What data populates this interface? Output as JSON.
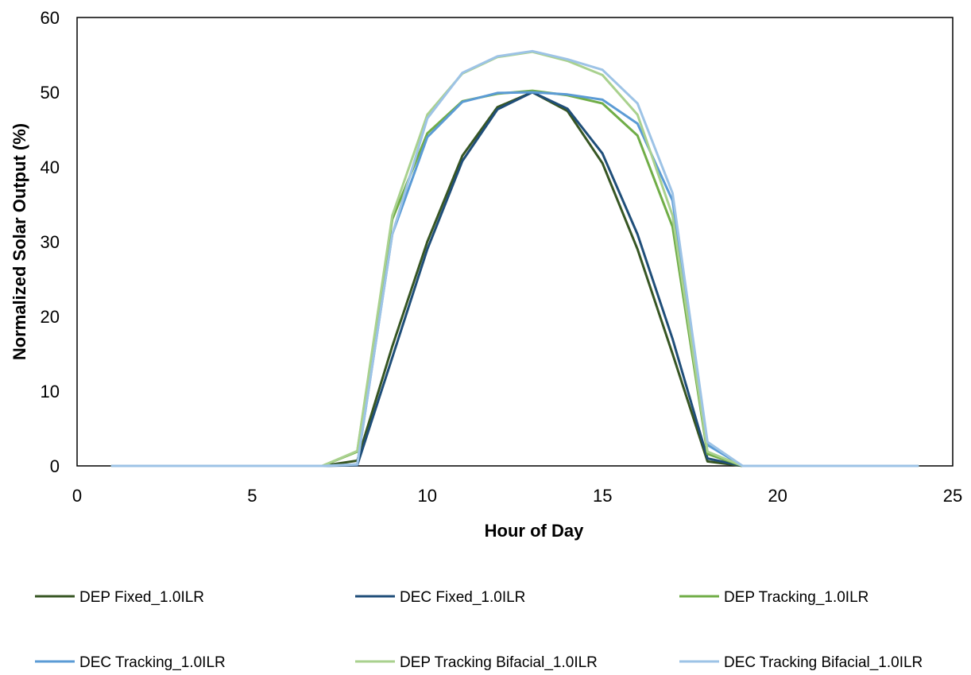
{
  "chart_data": {
    "type": "line",
    "title": "",
    "xlabel": "Hour of Day",
    "ylabel": "Normalized Solar Output (%)",
    "xlim": [
      0,
      25
    ],
    "ylim": [
      0,
      60
    ],
    "xticks": [
      0,
      5,
      10,
      15,
      20,
      25
    ],
    "yticks": [
      0,
      10,
      20,
      30,
      40,
      50,
      60
    ],
    "grid": false,
    "legend_position": "bottom",
    "x": [
      1,
      2,
      3,
      4,
      5,
      6,
      7,
      8,
      9,
      10,
      11,
      12,
      13,
      14,
      15,
      16,
      17,
      18,
      19,
      20,
      21,
      22,
      23,
      24
    ],
    "series": [
      {
        "name": "DEP Fixed_1.0ILR",
        "color": "#375623",
        "values": [
          0,
          0,
          0,
          0,
          0,
          0,
          0,
          0.7,
          16,
          30,
          41.5,
          48,
          50,
          47.5,
          40.5,
          29,
          15,
          0.6,
          0,
          0,
          0,
          0,
          0,
          0
        ]
      },
      {
        "name": "DEC Fixed_1.0ILR",
        "color": "#1f4e79",
        "values": [
          0,
          0,
          0,
          0,
          0,
          0,
          0,
          0.1,
          14.5,
          29,
          40.8,
          47.7,
          50,
          47.8,
          41.8,
          31,
          17,
          1,
          0,
          0,
          0,
          0,
          0,
          0
        ]
      },
      {
        "name": "DEP Tracking_1.0ILR",
        "color": "#70ad47",
        "values": [
          0,
          0,
          0,
          0,
          0,
          0,
          0,
          1.9,
          33,
          44.5,
          48.8,
          49.8,
          50.2,
          49.6,
          48.5,
          44.2,
          32,
          1.6,
          0,
          0,
          0,
          0,
          0,
          0
        ]
      },
      {
        "name": "DEC Tracking_1.0ILR",
        "color": "#5b9bd5",
        "values": [
          0,
          0,
          0,
          0,
          0,
          0,
          0,
          0.2,
          31,
          44,
          48.7,
          49.9,
          50,
          49.7,
          49,
          45.8,
          35.5,
          2.8,
          0,
          0,
          0,
          0,
          0,
          0
        ]
      },
      {
        "name": "DEP Tracking Bifacial_1.0ILR",
        "color": "#a9d18e",
        "values": [
          0,
          0,
          0,
          0,
          0,
          0,
          0,
          2,
          33.5,
          47,
          52.5,
          54.7,
          55.4,
          54.2,
          52.3,
          47,
          33.5,
          1.9,
          0,
          0,
          0,
          0,
          0,
          0
        ]
      },
      {
        "name": "DEC Tracking Bifacial_1.0ILR",
        "color": "#9dc3e6",
        "values": [
          0,
          0,
          0,
          0,
          0,
          0,
          0,
          0.2,
          31,
          46.5,
          52.6,
          54.8,
          55.5,
          54.4,
          53,
          48.5,
          36.5,
          3.2,
          0,
          0,
          0,
          0,
          0,
          0
        ]
      }
    ]
  }
}
